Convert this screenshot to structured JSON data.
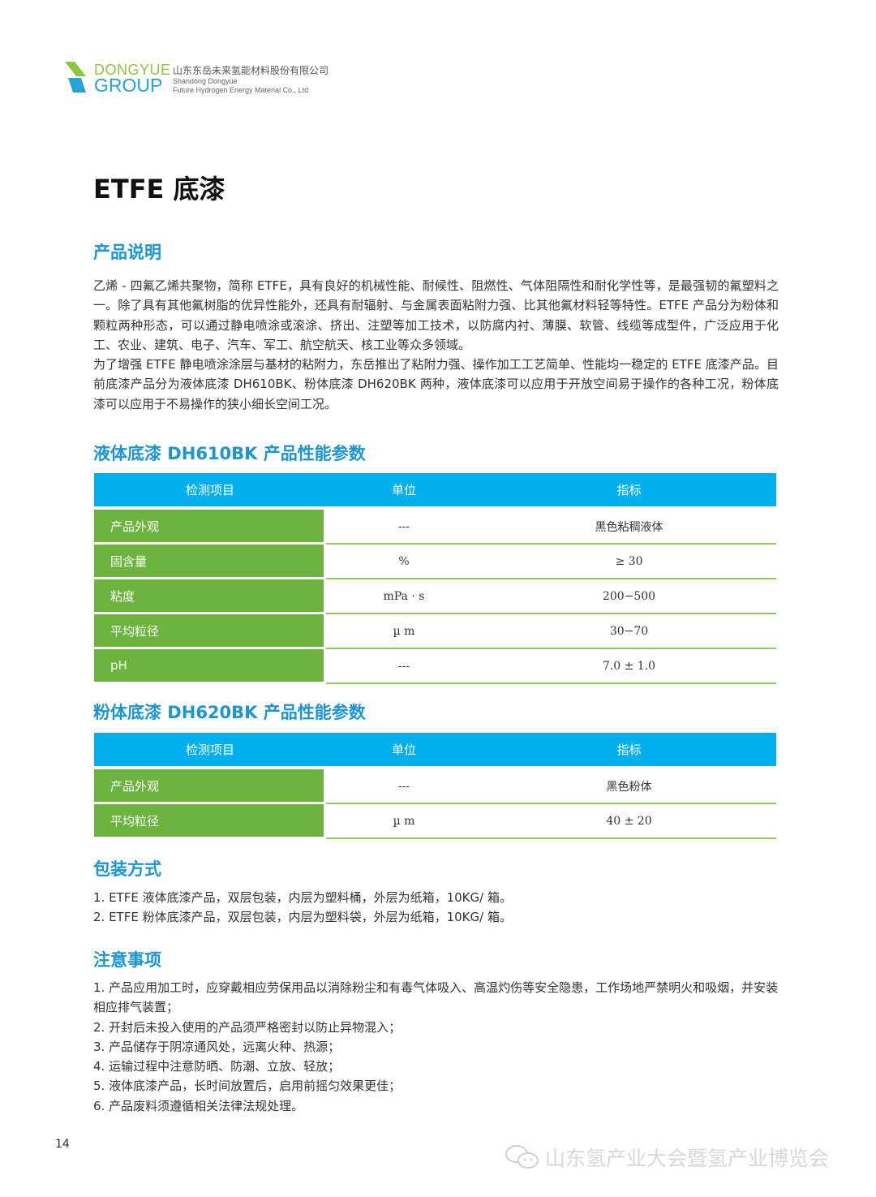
{
  "header": {
    "logo_line1": "DONGYUE",
    "logo_line2": "GROUP",
    "company_cn": "山东东岳未来氢能材料股份有限公司",
    "company_en_1": "Shandong Dongyue",
    "company_en_2": "Future Hydrogen Energy Material Co., Ltd",
    "colors": {
      "green": "#8dc63f",
      "blue": "#27a3dc"
    }
  },
  "title": "ETFE 底漆",
  "sections": {
    "desc_title": "产品说明",
    "desc_p1": "乙烯 - 四氟乙烯共聚物，简称 ETFE，具有良好的机械性能、耐候性、阻燃性、气体阻隔性和耐化学性等，是最强韧的氟塑料之一。除了具有其他氟树脂的优异性能外，还具有耐辐射、与金属表面粘附力强、比其他氟材料轻等特性。ETFE 产品分为粉体和颗粒两种形态，可以通过静电喷涂或滚涂、挤出、注塑等加工技术，以防腐内衬、薄膜、软管、线缆等成型件，广泛应用于化工、农业、建筑、电子、汽车、军工、航空航天、核工业等众多领域。",
    "desc_p2": "为了增强 ETFE 静电喷涂涂层与基材的粘附力，东岳推出了粘附力强、操作加工工艺简单、性能均一稳定的 ETFE 底漆产品。目前底漆产品分为液体底漆 DH610BK、粉体底漆 DH620BK 两种，液体底漆可以应用于开放空间易于操作的各种工况，粉体底漆可以应用于不易操作的狭小细长空间工况。",
    "table1_title": "液体底漆 DH610BK 产品性能参数",
    "table2_title": "粉体底漆 DH620BK 产品性能参数",
    "pack_title": "包装方式",
    "notes_title": "注意事项"
  },
  "table_headers": [
    "检测项目",
    "单位",
    "指标"
  ],
  "table1": [
    [
      "产品外观",
      "---",
      "黑色粘稠液体"
    ],
    [
      "固含量",
      "%",
      "≥ 30"
    ],
    [
      "粘度",
      "mPa · s",
      "200−500"
    ],
    [
      "平均粒径",
      "µ m",
      "30−70"
    ],
    [
      "pH",
      "---",
      "7.0 ± 1.0"
    ]
  ],
  "table2": [
    [
      "产品外观",
      "---",
      "黑色粉体"
    ],
    [
      "平均粒径",
      "µ m",
      "40 ± 20"
    ]
  ],
  "packaging": [
    "1. ETFE 液体底漆产品，双层包装，内层为塑料桶，外层为纸箱，10KG/ 箱。",
    "2. ETFE 粉体底漆产品，双层包装，内层为塑料袋，外层为纸箱，10KG/ 箱。"
  ],
  "notes": [
    "1. 产品应用加工时，应穿戴相应劳保用品以消除粉尘和有毒气体吸入、高温灼伤等安全隐患，工作场地严禁明火和吸烟，并安装相应排气装置；",
    "2. 开封后未投入使用的产品须严格密封以防止异物混入；",
    "3. 产品储存于阴凉通风处，远离火种、热源；",
    "4. 运输过程中注意防晒、防潮、立放、轻放；",
    "5. 液体底漆产品，长时间放置后，启用前摇匀效果更佳；",
    "6. 产品废料须遵循相关法律法规处理。"
  ],
  "page_number": "14",
  "watermark": "山东氢产业大会暨氢产业博览会",
  "colors": {
    "heading": "#1c96d3",
    "table_header": "#00b0ec",
    "table_key": "#6cb33f"
  }
}
